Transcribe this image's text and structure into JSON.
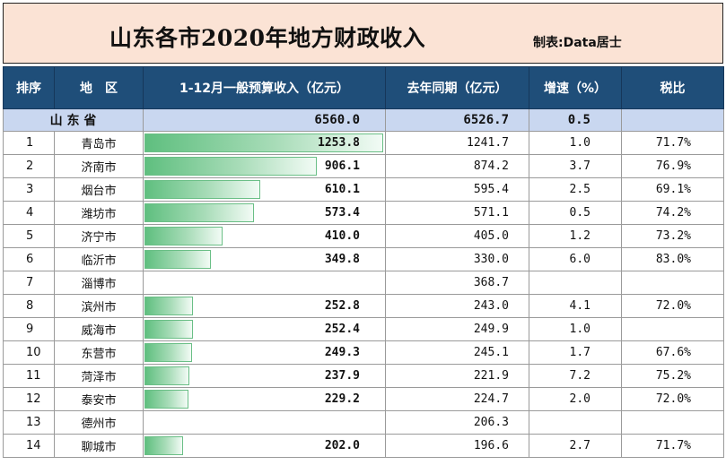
{
  "title": "山东各市2020年地方财政收入",
  "maker": "制表:Data居士",
  "headers": {
    "rank": "排序",
    "region": "地　区",
    "revenue": "1-12月一般预算收入（亿元）",
    "prev": "去年同期（亿元）",
    "growth": "增速（%）",
    "tax": "税比"
  },
  "province": {
    "name": "山 东 省",
    "revenue": "6560.0",
    "prev": "6526.7",
    "growth": "0.5",
    "tax": ""
  },
  "max_revenue": 1253.8,
  "rows": [
    {
      "rank": "1",
      "city": "青岛市",
      "revenue": "1253.8",
      "rev_value": 1253.8,
      "prev": "1241.7",
      "growth": "1.0",
      "tax": "71.7%"
    },
    {
      "rank": "2",
      "city": "济南市",
      "revenue": "906.1",
      "rev_value": 906.1,
      "prev": "874.2",
      "growth": "3.7",
      "tax": "76.9%"
    },
    {
      "rank": "3",
      "city": "烟台市",
      "revenue": "610.1",
      "rev_value": 610.1,
      "prev": "595.4",
      "growth": "2.5",
      "tax": "69.1%"
    },
    {
      "rank": "4",
      "city": "潍坊市",
      "revenue": "573.4",
      "rev_value": 573.4,
      "prev": "571.1",
      "growth": "0.5",
      "tax": "74.2%"
    },
    {
      "rank": "5",
      "city": "济宁市",
      "revenue": "410.0",
      "rev_value": 410.0,
      "prev": "405.0",
      "growth": "1.2",
      "tax": "73.2%"
    },
    {
      "rank": "6",
      "city": "临沂市",
      "revenue": "349.8",
      "rev_value": 349.8,
      "prev": "330.0",
      "growth": "6.0",
      "tax": "83.0%"
    },
    {
      "rank": "7",
      "city": "淄博市",
      "revenue": "",
      "rev_value": 0,
      "prev": "368.7",
      "growth": "",
      "tax": ""
    },
    {
      "rank": "8",
      "city": "滨州市",
      "revenue": "252.8",
      "rev_value": 252.8,
      "prev": "243.0",
      "growth": "4.1",
      "tax": "72.0%"
    },
    {
      "rank": "9",
      "city": "威海市",
      "revenue": "252.4",
      "rev_value": 252.4,
      "prev": "249.9",
      "growth": "1.0",
      "tax": ""
    },
    {
      "rank": "10",
      "city": "东营市",
      "revenue": "249.3",
      "rev_value": 249.3,
      "prev": "245.1",
      "growth": "1.7",
      "tax": "67.6%"
    },
    {
      "rank": "11",
      "city": "菏泽市",
      "revenue": "237.9",
      "rev_value": 237.9,
      "prev": "221.9",
      "growth": "7.2",
      "tax": "75.2%"
    },
    {
      "rank": "12",
      "city": "泰安市",
      "revenue": "229.2",
      "rev_value": 229.2,
      "prev": "224.7",
      "growth": "2.0",
      "tax": "72.0%"
    },
    {
      "rank": "13",
      "city": "德州市",
      "revenue": "",
      "rev_value": 0,
      "prev": "206.3",
      "growth": "",
      "tax": ""
    },
    {
      "rank": "14",
      "city": "聊城市",
      "revenue": "202.0",
      "rev_value": 202.0,
      "prev": "196.6",
      "growth": "2.7",
      "tax": "71.7%"
    }
  ]
}
